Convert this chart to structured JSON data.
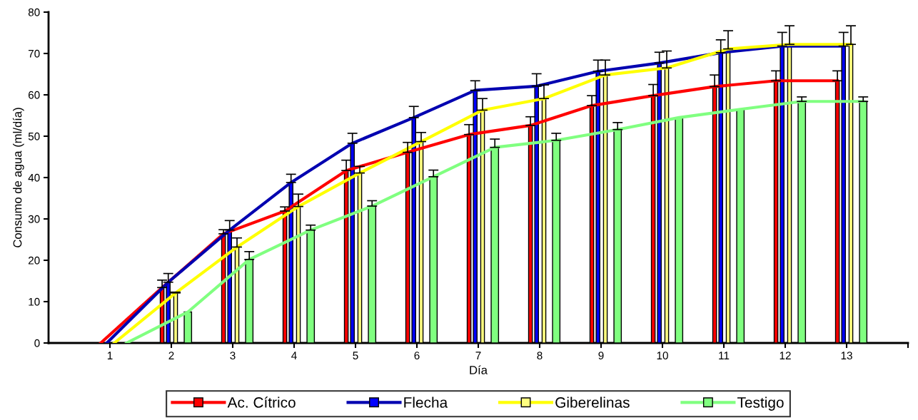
{
  "chart_data": {
    "type": "bar",
    "xlabel": "Día",
    "ylabel": "Consumo de agua (ml/día)",
    "x": [
      2,
      3,
      4,
      5,
      6,
      7,
      8,
      9,
      10,
      11,
      12,
      13
    ],
    "xlim": [
      0,
      14
    ],
    "xticks": [
      1,
      2,
      3,
      4,
      5,
      6,
      7,
      8,
      9,
      10,
      11,
      12,
      13,
      {
        "value": 14,
        "label": null
      }
    ],
    "ylim": [
      0,
      80
    ],
    "yticks": [
      0,
      10,
      20,
      30,
      40,
      50,
      60,
      70,
      80
    ],
    "grid": false,
    "legend": "bottom",
    "series": [
      {
        "colors": [
          "#ff0000",
          "#ff0000",
          "#ff0000",
          "#ff0000",
          "#ff0000",
          "#ff0000",
          "#ff0000",
          "#ff0000",
          "#ff0000",
          "#ff0000",
          "#ff0000",
          "#ff0000"
        ],
        "values": [
          13.4,
          26.4,
          31.9,
          41.7,
          46.1,
          50.4,
          52.6,
          57.4,
          59.8,
          62.0,
          63.4,
          63.4
        ],
        "errors": [
          [
            13.4,
            15.2
          ],
          [
            26.4,
            27.4
          ],
          [
            31.9,
            32.9
          ],
          [
            41.7,
            44.2
          ],
          [
            46.1,
            48.5
          ],
          [
            50.4,
            52.8
          ],
          [
            52.6,
            54.7
          ],
          [
            57.4,
            59.8
          ],
          [
            59.8,
            62.5
          ],
          [
            62.0,
            64.8
          ],
          [
            63.4,
            65.8
          ],
          [
            63.4,
            65.8
          ]
        ]
      },
      {
        "colors": [
          "#0000ff",
          "#0000ff",
          "#0000ff",
          "#0000ff",
          "#0000ff",
          "#0000ff",
          "#0000ff",
          "#0000ff",
          "#0000ff",
          "#0000ff",
          "#0000ff",
          "#0000ff"
        ],
        "values": [
          14.7,
          27.3,
          38.8,
          48.3,
          54.5,
          61.1,
          62.1,
          65.7,
          67.7,
          70.2,
          71.8,
          71.8
        ],
        "errors": [
          [
            14.7,
            16.8
          ],
          [
            27.3,
            29.6
          ],
          [
            38.8,
            40.8
          ],
          [
            48.3,
            50.7
          ],
          [
            54.5,
            57.2
          ],
          [
            61.1,
            63.4
          ],
          [
            62.1,
            65.1
          ],
          [
            65.7,
            68.4
          ],
          [
            67.7,
            70.3
          ],
          [
            70.2,
            73.3
          ],
          [
            71.8,
            75.1
          ],
          [
            71.8,
            75.1
          ]
        ]
      },
      {
        "colors": [
          "#ffff80",
          "#ffff80",
          "#ffff80",
          "#ffff80",
          "#ffff80",
          "#ffff80",
          "#ffff80",
          "#ffff80",
          "#ffff80",
          "#ffff80",
          "#ffff80",
          "#ffff80"
        ],
        "values": [
          12.1,
          23.2,
          33.0,
          41.1,
          48.7,
          56.3,
          59.1,
          64.8,
          66.5,
          71.1,
          72.2,
          72.2
        ],
        "errors": [
          [
            12.1,
            12.3
          ],
          [
            23.2,
            25.4
          ],
          [
            33.0,
            36.0
          ],
          [
            41.1,
            42.7
          ],
          [
            48.7,
            50.9
          ],
          [
            56.3,
            59.1
          ],
          [
            59.1,
            62.4
          ],
          [
            64.8,
            68.4
          ],
          [
            66.5,
            70.6
          ],
          [
            71.1,
            75.5
          ],
          [
            72.2,
            76.7
          ],
          [
            72.2,
            76.7
          ]
        ]
      },
      {
        "colors": [
          "#80ff80",
          "#80ff80",
          "#80ff80",
          "#80ff80",
          "#80ff80",
          "#80ff80",
          "#80ff80",
          "#80ff80",
          "#80ff80",
          "#80ff80",
          "#80ff80",
          "#80ff80"
        ],
        "values": [
          7.5,
          20.2,
          27.3,
          33.1,
          40.2,
          47.3,
          49.0,
          51.6,
          54.5,
          56.5,
          58.4,
          58.4
        ],
        "errors": [
          null,
          [
            20.2,
            22.1
          ],
          [
            27.3,
            28.5
          ],
          [
            33.1,
            34.4
          ],
          [
            40.2,
            41.8
          ],
          [
            47.3,
            49.3
          ],
          [
            49.0,
            50.7
          ],
          [
            51.6,
            53.3
          ],
          null,
          null,
          [
            58.4,
            59.5
          ],
          [
            58.4,
            59.5
          ]
        ]
      },
      {
        "type": "line",
        "name": "Ac. Cítrico",
        "color": "#ff0000",
        "x": [
          0.85,
          1.85,
          2.85,
          3.85,
          4.85,
          5.85,
          6.85,
          7.85,
          8.85,
          9.85,
          10.85,
          11.85,
          12.85
        ],
        "values": [
          0,
          13.4,
          26.4,
          31.9,
          41.7,
          46.1,
          50.4,
          52.6,
          57.4,
          59.8,
          62.0,
          63.4,
          63.4
        ]
      },
      {
        "type": "line",
        "name": "Flecha",
        "color": "#0000b0",
        "x": [
          0.95,
          1.95,
          2.95,
          3.95,
          4.95,
          5.95,
          6.95,
          7.95,
          8.95,
          9.95,
          10.95,
          11.95,
          12.95
        ],
        "values": [
          0,
          14.7,
          27.3,
          38.8,
          48.3,
          54.5,
          61.1,
          62.1,
          65.7,
          67.7,
          70.2,
          71.8,
          71.8
        ]
      },
      {
        "type": "line",
        "name": "Giberelinas",
        "color": "#ffff00",
        "x": [
          1.07,
          2.07,
          3.07,
          4.07,
          5.07,
          6.07,
          7.07,
          8.07,
          9.07,
          10.07,
          11.07,
          12.07,
          13.07
        ],
        "values": [
          0,
          12.1,
          23.2,
          33.0,
          41.1,
          48.7,
          56.3,
          59.1,
          64.8,
          66.5,
          71.1,
          72.2,
          72.2
        ]
      },
      {
        "type": "line",
        "name": "Testigo",
        "color": "#80ff80",
        "x": [
          1.27,
          2.27,
          3.27,
          4.27,
          5.27,
          6.27,
          7.27,
          8.27,
          9.27,
          10.27,
          11.27,
          12.27,
          13.27
        ],
        "values": [
          0,
          7.5,
          20.2,
          27.3,
          33.1,
          40.2,
          47.3,
          49.0,
          51.6,
          54.5,
          56.5,
          58.4,
          58.4
        ]
      }
    ]
  }
}
